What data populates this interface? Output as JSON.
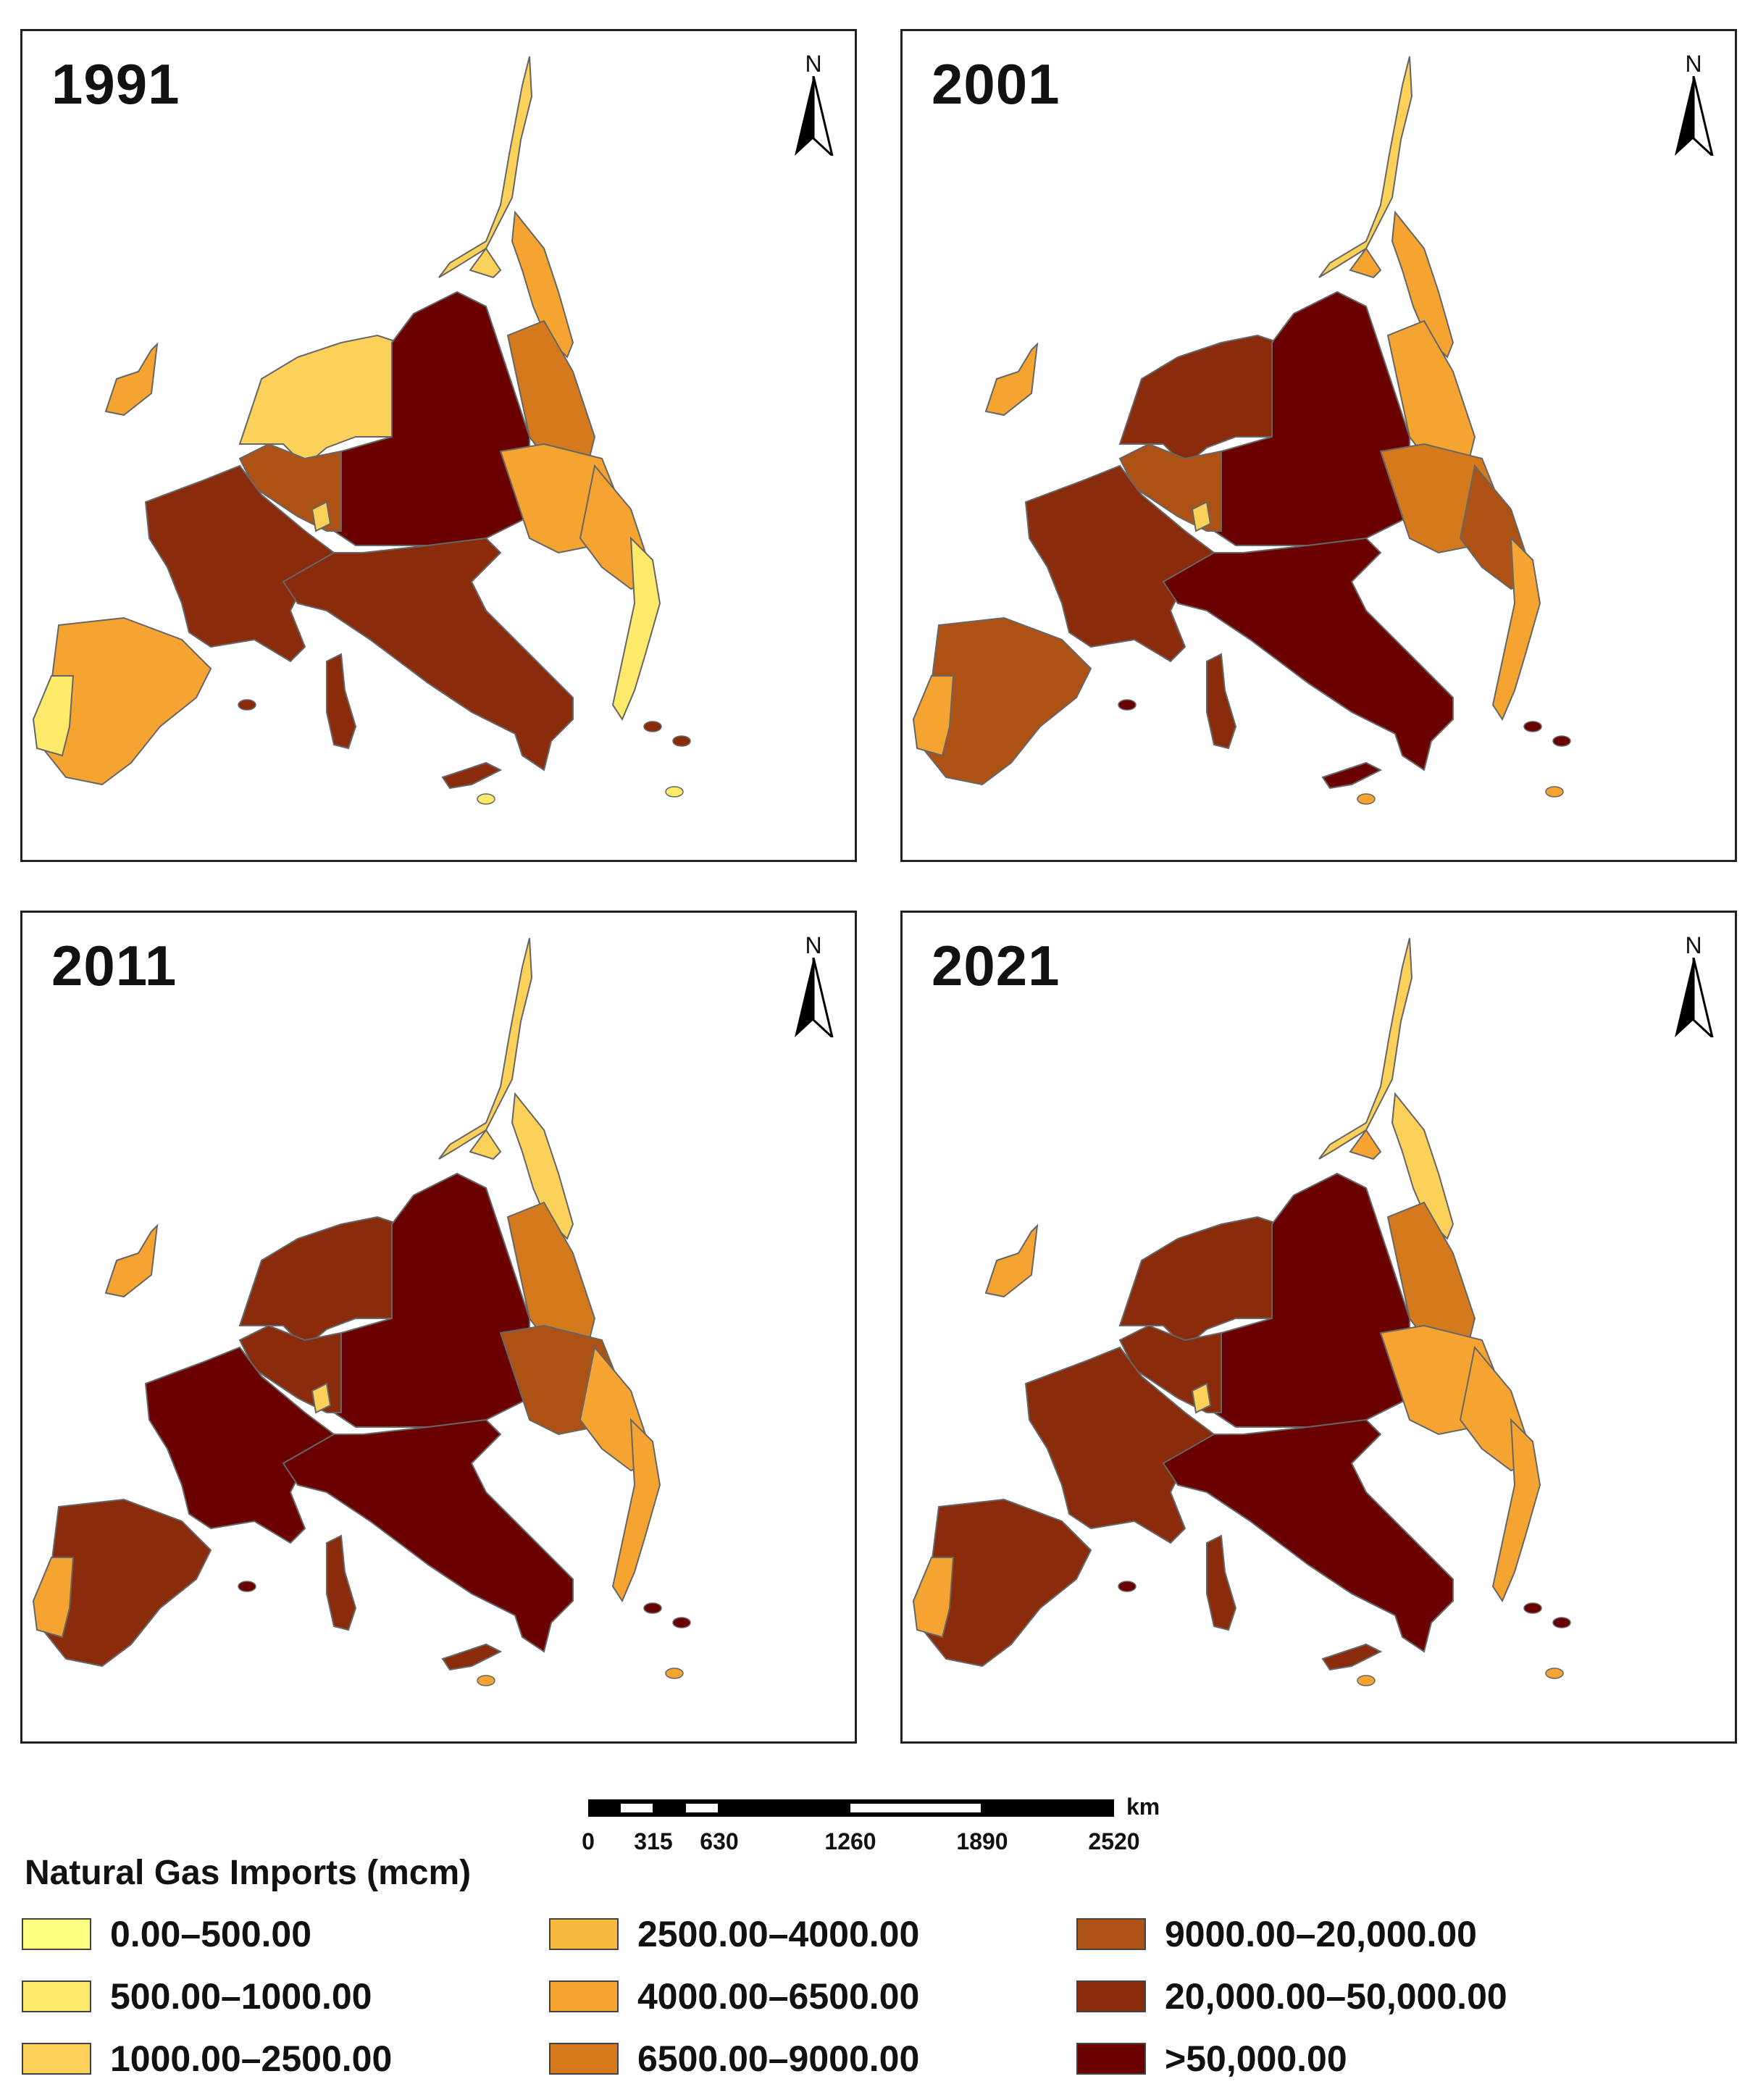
{
  "panels": [
    {
      "year": "1991",
      "fills": {
        "ireland": "#f5a431",
        "iberia": "#f5a431",
        "portugal": "#fdea6a",
        "france": "#8a2c0b",
        "benelux": "#ad5214",
        "uk": "#fbd15a",
        "germany": "#6b0000",
        "italy": "#8a2c0b",
        "sardinia": "#8a2c0b",
        "sicily": "#8a2c0b",
        "poland": "#d4791c",
        "central": "#f5a431",
        "balkans": "#f5a431",
        "greece": "#fdea6a",
        "scand": "#fbd15a",
        "finland": "#f5a431",
        "baltic": "#fbd15a",
        "switz": "#fbd15a"
      }
    },
    {
      "year": "2001",
      "fills": {
        "ireland": "#f5a431",
        "iberia": "#ad5214",
        "portugal": "#f5a431",
        "france": "#8a2c0b",
        "benelux": "#ad5214",
        "uk": "#8a2c0b",
        "germany": "#6b0000",
        "italy": "#6b0000",
        "sardinia": "#8a2c0b",
        "sicily": "#6b0000",
        "poland": "#f5a431",
        "central": "#d4791c",
        "balkans": "#ad5214",
        "greece": "#f5a431",
        "scand": "#fbd15a",
        "finland": "#f5a431",
        "baltic": "#f5a431",
        "switz": "#fbd15a"
      }
    },
    {
      "year": "2011",
      "fills": {
        "ireland": "#f5a431",
        "iberia": "#8a2c0b",
        "portugal": "#f5a431",
        "france": "#6b0000",
        "benelux": "#8a2c0b",
        "uk": "#8a2c0b",
        "germany": "#6b0000",
        "italy": "#6b0000",
        "sardinia": "#8a2c0b",
        "sicily": "#8a2c0b",
        "poland": "#d4791c",
        "central": "#ad5214",
        "balkans": "#f5a431",
        "greece": "#f5a431",
        "scand": "#fbd15a",
        "finland": "#fbd15a",
        "baltic": "#fbd15a",
        "switz": "#fbd15a"
      }
    },
    {
      "year": "2021",
      "fills": {
        "ireland": "#f5a431",
        "iberia": "#8a2c0b",
        "portugal": "#f5a431",
        "france": "#8a2c0b",
        "benelux": "#8a2c0b",
        "uk": "#8a2c0b",
        "germany": "#6b0000",
        "italy": "#6b0000",
        "sardinia": "#8a2c0b",
        "sicily": "#8a2c0b",
        "poland": "#d4791c",
        "central": "#f5a431",
        "balkans": "#f5a431",
        "greece": "#f5a431",
        "scand": "#fbd15a",
        "finland": "#fbd15a",
        "baltic": "#f5a431",
        "switz": "#fbd15a"
      }
    }
  ],
  "north_label": "N",
  "scale": {
    "unit": "km",
    "ticks": [
      "0",
      "315",
      "630",
      "1260",
      "1890",
      "2520"
    ]
  },
  "legend": {
    "title": "Natural Gas Imports (mcm)",
    "items": [
      {
        "label": "0.00–500.00",
        "color": "#ffff80"
      },
      {
        "label": "500.00–1000.00",
        "color": "#fdea6a"
      },
      {
        "label": "1000.00–2500.00",
        "color": "#fbd15a"
      },
      {
        "label": "2500.00–4000.00",
        "color": "#f7b940"
      },
      {
        "label": "4000.00–6500.00",
        "color": "#f5a431"
      },
      {
        "label": "6500.00–9000.00",
        "color": "#d4791c"
      },
      {
        "label": "9000.00–20,000.00",
        "color": "#ad5214"
      },
      {
        "label": "20,000.00–50,000.00",
        "color": "#8a2c0b"
      },
      {
        "label": ">50,000.00",
        "color": "#6b0000"
      }
    ]
  }
}
